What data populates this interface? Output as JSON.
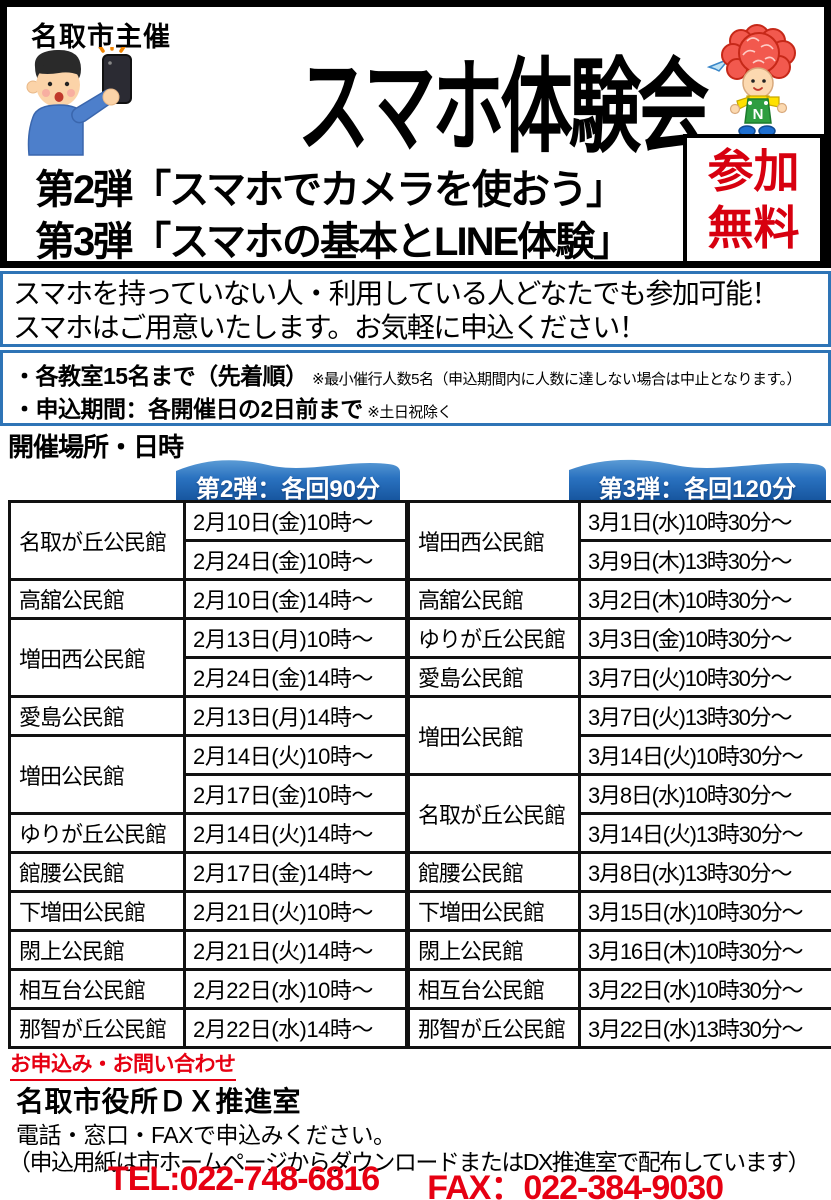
{
  "header": {
    "organizer": "名取市主催",
    "title": "スマホ体験会",
    "subtitle_line1": "第2弾「スマホでカメラを使おう」",
    "subtitle_line2": "第3弾「スマホの基本とLINE体験」",
    "free_badge_line1": "参加",
    "free_badge_line2": "無料"
  },
  "notice": {
    "line1": "スマホを持っていない人・利用している人どなたでも参加可能！",
    "line2": "スマホはご用意いたします。お気軽に申込ください！"
  },
  "conditions": {
    "item1_main": "・各教室15名まで（先着順）",
    "item1_note": "※最小催行人数5名（申込期間内に人数に達しない場合は中止となります。）",
    "item2_main": "・申込期間：各開催日の2日前まで",
    "item2_note": "※土日祝除く"
  },
  "schedule": {
    "heading": "開催場所・日時",
    "session2": {
      "ribbon": "第2弾：各回90分",
      "rows": [
        {
          "location": "名取が丘公民館",
          "times": [
            "2月10日(金)10時～",
            "2月24日(金)10時～"
          ]
        },
        {
          "location": "高舘公民館",
          "times": [
            "2月10日(金)14時～"
          ]
        },
        {
          "location": "増田西公民館",
          "times": [
            "2月13日(月)10時～",
            "2月24日(金)14時～"
          ]
        },
        {
          "location": "愛島公民館",
          "times": [
            "2月13日(月)14時～"
          ]
        },
        {
          "location": "増田公民館",
          "times": [
            "2月14日(火)10時～",
            "2月17日(金)10時～"
          ]
        },
        {
          "location": "ゆりが丘公民館",
          "times": [
            "2月14日(火)14時～"
          ]
        },
        {
          "location": "館腰公民館",
          "times": [
            "2月17日(金)14時～"
          ]
        },
        {
          "location": "下増田公民館",
          "times": [
            "2月21日(火)10時～"
          ]
        },
        {
          "location": "閖上公民館",
          "times": [
            "2月21日(火)14時～"
          ]
        },
        {
          "location": "相互台公民館",
          "times": [
            "2月22日(水)10時～"
          ]
        },
        {
          "location": "那智が丘公民館",
          "times": [
            "2月22日(水)14時～"
          ]
        }
      ]
    },
    "session3": {
      "ribbon": "第3弾：各回120分",
      "rows": [
        {
          "location": "増田西公民館",
          "times": [
            "3月1日(水)10時30分～",
            "3月9日(木)13時30分～"
          ]
        },
        {
          "location": "高舘公民館",
          "times": [
            "3月2日(木)10時30分～"
          ]
        },
        {
          "location": "ゆりが丘公民館",
          "times": [
            "3月3日(金)10時30分～"
          ]
        },
        {
          "location": "愛島公民館",
          "times": [
            "3月7日(火)10時30分～"
          ]
        },
        {
          "location": "増田公民館",
          "times": [
            "3月7日(火)13時30分～",
            "3月14日(火)10時30分～"
          ]
        },
        {
          "location": "名取が丘公民館",
          "times": [
            "3月8日(水)10時30分～",
            "3月14日(火)13時30分～"
          ]
        },
        {
          "location": "館腰公民館",
          "times": [
            "3月8日(水)13時30分～"
          ]
        },
        {
          "location": "下増田公民館",
          "times": [
            "3月15日(水)10時30分～"
          ]
        },
        {
          "location": "閖上公民館",
          "times": [
            "3月16日(木)10時30分～"
          ]
        },
        {
          "location": "相互台公民館",
          "times": [
            "3月22日(水)10時30分～"
          ]
        },
        {
          "location": "那智が丘公民館",
          "times": [
            "3月22日(水)13時30分～"
          ]
        }
      ]
    }
  },
  "contact": {
    "heading": "お申込み・お問い合わせ",
    "office": "名取市役所ＤＸ推進室",
    "line1": "電話・窓口・FAXで申込みください。",
    "line2": "（申込用紙は市ホームページからダウンロードまたはDX推進室で配布しています）",
    "tel": "TEL:022-748-6816",
    "fax": "FAX：022-384-9030"
  },
  "icons": {
    "selfie_man": "selfie-man-illustration",
    "mascot": "carnation-mascot-illustration",
    "paper_airplane": "paper-airplane-icon"
  },
  "colors": {
    "box_border_blue": "#2e74b6",
    "ribbon_blue_dark": "#1b5faf",
    "ribbon_blue_light": "#5b9bd5",
    "badge_red": "#d7000f",
    "contact_red": "#e60012"
  }
}
